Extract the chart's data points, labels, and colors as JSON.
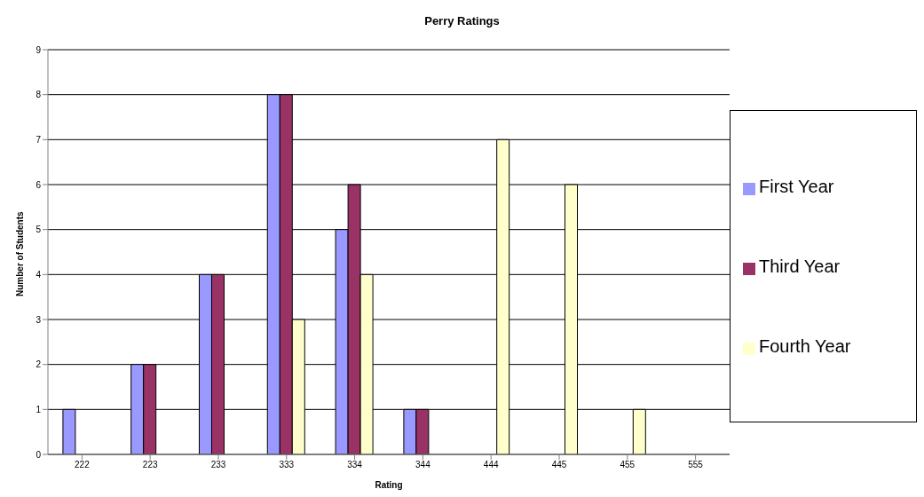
{
  "chart_data": {
    "type": "bar",
    "title": "Perry Ratings",
    "xlabel": "Rating",
    "ylabel": "Number of Students",
    "categories": [
      "222",
      "223",
      "233",
      "333",
      "334",
      "344",
      "444",
      "445",
      "455",
      "555"
    ],
    "series": [
      {
        "name": "First Year",
        "color": "#9999ff",
        "values": [
          1,
          2,
          4,
          8,
          5,
          1,
          0,
          0,
          0,
          0
        ]
      },
      {
        "name": "Third Year",
        "color": "#993366",
        "values": [
          0,
          2,
          4,
          8,
          6,
          1,
          0,
          0,
          0,
          0
        ]
      },
      {
        "name": "Fourth Year",
        "color": "#ffffcc",
        "values": [
          0,
          0,
          0,
          3,
          4,
          0,
          7,
          6,
          1,
          0
        ]
      }
    ],
    "ylim": [
      0,
      9
    ],
    "yticks": [
      0,
      1,
      2,
      3,
      4,
      5,
      6,
      7,
      8,
      9
    ],
    "grid": "y",
    "legend": "right"
  }
}
